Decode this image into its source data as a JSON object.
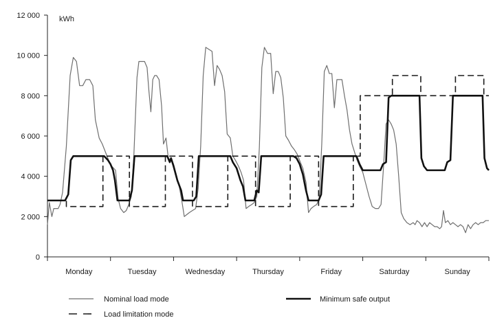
{
  "chart_data": {
    "type": "line",
    "ylabel": "kWh",
    "ylim": [
      0,
      12000
    ],
    "yticks": [
      0,
      2000,
      4000,
      6000,
      8000,
      10000,
      12000
    ],
    "ytick_labels": [
      "0",
      "2 000",
      "4 000",
      "6 000",
      "8 000",
      "10 000",
      "12 000"
    ],
    "x_categories": [
      "Monday",
      "Tuesday",
      "Wednesday",
      "Thursday",
      "Friday",
      "Saturday",
      "Sunday"
    ],
    "x_unit_note": "x values are in days from Monday 00:00 (0 to 7)",
    "grid": false,
    "legend_position": "bottom",
    "series": [
      {
        "name": "Nominal load mode",
        "style": "thin-solid",
        "color": "#6e6e6e",
        "points": [
          [
            0.0,
            1600
          ],
          [
            0.03,
            2700
          ],
          [
            0.07,
            2000
          ],
          [
            0.1,
            2400
          ],
          [
            0.14,
            2400
          ],
          [
            0.17,
            2400
          ],
          [
            0.2,
            2600
          ],
          [
            0.24,
            3200
          ],
          [
            0.3,
            5500
          ],
          [
            0.36,
            9000
          ],
          [
            0.41,
            9900
          ],
          [
            0.46,
            9700
          ],
          [
            0.51,
            8500
          ],
          [
            0.56,
            8500
          ],
          [
            0.61,
            8800
          ],
          [
            0.67,
            8800
          ],
          [
            0.72,
            8500
          ],
          [
            0.76,
            6800
          ],
          [
            0.82,
            5900
          ],
          [
            0.87,
            5600
          ],
          [
            0.92,
            5200
          ],
          [
            0.97,
            4800
          ],
          [
            1.02,
            4500
          ],
          [
            1.08,
            4300
          ],
          [
            1.12,
            2900
          ],
          [
            1.16,
            2400
          ],
          [
            1.21,
            2200
          ],
          [
            1.25,
            2300
          ],
          [
            1.29,
            2600
          ],
          [
            1.33,
            3000
          ],
          [
            1.37,
            5000
          ],
          [
            1.42,
            8900
          ],
          [
            1.45,
            9700
          ],
          [
            1.49,
            9700
          ],
          [
            1.54,
            9700
          ],
          [
            1.58,
            9400
          ],
          [
            1.61,
            8200
          ],
          [
            1.64,
            7200
          ],
          [
            1.67,
            8800
          ],
          [
            1.7,
            9000
          ],
          [
            1.73,
            9000
          ],
          [
            1.77,
            8800
          ],
          [
            1.81,
            7500
          ],
          [
            1.84,
            5600
          ],
          [
            1.88,
            5900
          ],
          [
            1.92,
            4800
          ],
          [
            1.96,
            4900
          ],
          [
            2.0,
            4600
          ],
          [
            2.05,
            4000
          ],
          [
            2.09,
            3500
          ],
          [
            2.13,
            2800
          ],
          [
            2.17,
            2000
          ],
          [
            2.21,
            2100
          ],
          [
            2.25,
            2200
          ],
          [
            2.3,
            2300
          ],
          [
            2.35,
            2400
          ],
          [
            2.39,
            3400
          ],
          [
            2.43,
            5500
          ],
          [
            2.47,
            9000
          ],
          [
            2.51,
            10400
          ],
          [
            2.56,
            10300
          ],
          [
            2.61,
            10200
          ],
          [
            2.65,
            8500
          ],
          [
            2.69,
            9500
          ],
          [
            2.73,
            9300
          ],
          [
            2.77,
            9000
          ],
          [
            2.81,
            8200
          ],
          [
            2.85,
            6100
          ],
          [
            2.9,
            5900
          ],
          [
            2.94,
            5000
          ],
          [
            2.98,
            4800
          ],
          [
            3.03,
            4500
          ],
          [
            3.07,
            4200
          ],
          [
            3.11,
            3800
          ],
          [
            3.15,
            2400
          ],
          [
            3.19,
            2500
          ],
          [
            3.24,
            2600
          ],
          [
            3.28,
            2700
          ],
          [
            3.32,
            3000
          ],
          [
            3.36,
            5400
          ],
          [
            3.4,
            9400
          ],
          [
            3.44,
            10400
          ],
          [
            3.49,
            10100
          ],
          [
            3.54,
            10100
          ],
          [
            3.58,
            8100
          ],
          [
            3.62,
            9200
          ],
          [
            3.66,
            9200
          ],
          [
            3.7,
            8900
          ],
          [
            3.74,
            7900
          ],
          [
            3.78,
            6000
          ],
          [
            3.82,
            5800
          ],
          [
            3.87,
            5500
          ],
          [
            3.92,
            5300
          ],
          [
            3.96,
            5100
          ],
          [
            4.01,
            4700
          ],
          [
            4.05,
            4400
          ],
          [
            4.1,
            3700
          ],
          [
            4.14,
            2200
          ],
          [
            4.18,
            2400
          ],
          [
            4.22,
            2500
          ],
          [
            4.27,
            2600
          ],
          [
            4.31,
            2900
          ],
          [
            4.35,
            5600
          ],
          [
            4.39,
            9200
          ],
          [
            4.43,
            9500
          ],
          [
            4.47,
            9100
          ],
          [
            4.51,
            9100
          ],
          [
            4.55,
            7400
          ],
          [
            4.59,
            8800
          ],
          [
            4.63,
            8800
          ],
          [
            4.67,
            8800
          ],
          [
            4.71,
            8000
          ],
          [
            4.75,
            7300
          ],
          [
            4.79,
            6300
          ],
          [
            4.83,
            5600
          ],
          [
            4.87,
            5200
          ],
          [
            4.91,
            4800
          ],
          [
            4.95,
            4500
          ],
          [
            5.0,
            4200
          ],
          [
            5.05,
            3600
          ],
          [
            5.1,
            3000
          ],
          [
            5.15,
            2500
          ],
          [
            5.2,
            2400
          ],
          [
            5.25,
            2400
          ],
          [
            5.29,
            2600
          ],
          [
            5.33,
            4500
          ],
          [
            5.37,
            6600
          ],
          [
            5.41,
            6800
          ],
          [
            5.45,
            6600
          ],
          [
            5.49,
            6300
          ],
          [
            5.53,
            5600
          ],
          [
            5.57,
            4000
          ],
          [
            5.61,
            2200
          ],
          [
            5.65,
            1900
          ],
          [
            5.7,
            1700
          ],
          [
            5.75,
            1600
          ],
          [
            5.8,
            1700
          ],
          [
            5.83,
            1600
          ],
          [
            5.86,
            1800
          ],
          [
            5.9,
            1700
          ],
          [
            5.94,
            1500
          ],
          [
            5.98,
            1700
          ],
          [
            6.02,
            1500
          ],
          [
            6.06,
            1700
          ],
          [
            6.1,
            1600
          ],
          [
            6.14,
            1500
          ],
          [
            6.18,
            1500
          ],
          [
            6.22,
            1400
          ],
          [
            6.25,
            1500
          ],
          [
            6.28,
            2300
          ],
          [
            6.31,
            1700
          ],
          [
            6.35,
            1800
          ],
          [
            6.39,
            1600
          ],
          [
            6.43,
            1700
          ],
          [
            6.47,
            1600
          ],
          [
            6.51,
            1500
          ],
          [
            6.55,
            1600
          ],
          [
            6.59,
            1500
          ],
          [
            6.63,
            1200
          ],
          [
            6.67,
            1600
          ],
          [
            6.71,
            1400
          ],
          [
            6.75,
            1600
          ],
          [
            6.79,
            1700
          ],
          [
            6.83,
            1600
          ],
          [
            6.87,
            1700
          ],
          [
            6.91,
            1700
          ],
          [
            6.95,
            1800
          ],
          [
            7.0,
            1800
          ]
        ]
      },
      {
        "name": "Load limitation mode",
        "style": "dashed",
        "color": "#1a1a1a",
        "points": [
          [
            0.0,
            2800
          ],
          [
            0.3,
            2800
          ],
          [
            0.3,
            2500
          ],
          [
            0.88,
            2500
          ],
          [
            0.88,
            5000
          ],
          [
            1.3,
            5000
          ],
          [
            1.3,
            2500
          ],
          [
            1.87,
            2500
          ],
          [
            1.87,
            5000
          ],
          [
            2.3,
            5000
          ],
          [
            2.3,
            2500
          ],
          [
            2.86,
            2500
          ],
          [
            2.86,
            5000
          ],
          [
            3.3,
            5000
          ],
          [
            3.3,
            2500
          ],
          [
            3.85,
            2500
          ],
          [
            3.85,
            5000
          ],
          [
            4.3,
            5000
          ],
          [
            4.3,
            2500
          ],
          [
            4.85,
            2500
          ],
          [
            4.85,
            5000
          ],
          [
            4.96,
            5000
          ],
          [
            4.96,
            8000
          ],
          [
            5.47,
            8000
          ],
          [
            5.47,
            9000
          ],
          [
            5.92,
            9000
          ],
          [
            5.92,
            8000
          ],
          [
            6.47,
            8000
          ],
          [
            6.47,
            9000
          ],
          [
            6.92,
            9000
          ],
          [
            6.92,
            8000
          ],
          [
            7.0,
            8000
          ]
        ]
      },
      {
        "name": "Minimum safe output",
        "style": "thick-solid",
        "color": "#111111",
        "points": [
          [
            0.0,
            2800
          ],
          [
            0.28,
            2800
          ],
          [
            0.33,
            3100
          ],
          [
            0.37,
            4800
          ],
          [
            0.41,
            5000
          ],
          [
            0.9,
            5000
          ],
          [
            0.96,
            4800
          ],
          [
            1.0,
            4600
          ],
          [
            1.04,
            4300
          ],
          [
            1.07,
            3800
          ],
          [
            1.11,
            2800
          ],
          [
            1.3,
            2800
          ],
          [
            1.34,
            3300
          ],
          [
            1.38,
            5000
          ],
          [
            1.9,
            5000
          ],
          [
            1.94,
            4700
          ],
          [
            1.96,
            4900
          ],
          [
            2.0,
            4500
          ],
          [
            2.06,
            3800
          ],
          [
            2.12,
            3300
          ],
          [
            2.15,
            2800
          ],
          [
            2.32,
            2800
          ],
          [
            2.36,
            3000
          ],
          [
            2.4,
            5000
          ],
          [
            2.9,
            5000
          ],
          [
            2.94,
            4700
          ],
          [
            3.0,
            4400
          ],
          [
            3.06,
            3800
          ],
          [
            3.1,
            3500
          ],
          [
            3.14,
            2800
          ],
          [
            3.28,
            2800
          ],
          [
            3.32,
            3300
          ],
          [
            3.35,
            3200
          ],
          [
            3.39,
            5000
          ],
          [
            3.9,
            5000
          ],
          [
            3.95,
            4900
          ],
          [
            4.0,
            4600
          ],
          [
            4.05,
            4100
          ],
          [
            4.1,
            3300
          ],
          [
            4.14,
            2800
          ],
          [
            4.3,
            2800
          ],
          [
            4.34,
            3100
          ],
          [
            4.38,
            5000
          ],
          [
            4.9,
            5000
          ],
          [
            4.95,
            4600
          ],
          [
            5.0,
            4300
          ],
          [
            5.28,
            4300
          ],
          [
            5.32,
            4600
          ],
          [
            5.37,
            4700
          ],
          [
            5.41,
            7900
          ],
          [
            5.45,
            8000
          ],
          [
            5.9,
            8000
          ],
          [
            5.93,
            4900
          ],
          [
            5.97,
            4500
          ],
          [
            6.02,
            4300
          ],
          [
            6.3,
            4300
          ],
          [
            6.34,
            4700
          ],
          [
            6.39,
            4800
          ],
          [
            6.43,
            8000
          ],
          [
            6.9,
            8000
          ],
          [
            6.93,
            4900
          ],
          [
            6.97,
            4400
          ],
          [
            7.0,
            4300
          ]
        ]
      }
    ]
  }
}
